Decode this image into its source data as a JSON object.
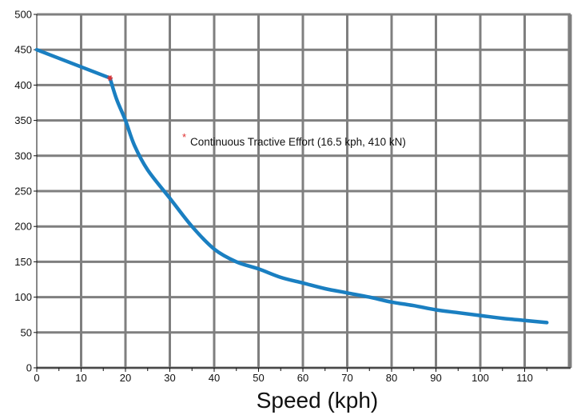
{
  "chart_data": {
    "type": "line",
    "title": "",
    "xlabel": "Speed (kph)",
    "ylabel": "",
    "xlim": [
      0,
      120
    ],
    "ylim": [
      0,
      500
    ],
    "grid": true,
    "x_ticks": [
      "0",
      "10",
      "20",
      "30",
      "40",
      "50",
      "60",
      "70",
      "80",
      "90",
      "100",
      "110"
    ],
    "y_ticks": [
      "0",
      "50",
      "100",
      "150",
      "200",
      "250",
      "300",
      "350",
      "400",
      "450",
      "500"
    ],
    "series": [
      {
        "color": "#1a7fc1",
        "points": [
          [
            0,
            450
          ],
          [
            16.5,
            410
          ],
          [
            18,
            380
          ],
          [
            20,
            350
          ],
          [
            22,
            315
          ],
          [
            25,
            280
          ],
          [
            30,
            240
          ],
          [
            35,
            200
          ],
          [
            40,
            168
          ],
          [
            45,
            150
          ],
          [
            50,
            140
          ],
          [
            55,
            128
          ],
          [
            60,
            120
          ],
          [
            65,
            112
          ],
          [
            70,
            106
          ],
          [
            75,
            100
          ],
          [
            80,
            93
          ],
          [
            85,
            88
          ],
          [
            90,
            82
          ],
          [
            95,
            78
          ],
          [
            100,
            74
          ],
          [
            105,
            70
          ],
          [
            110,
            67
          ],
          [
            115,
            64
          ]
        ]
      }
    ],
    "markers": [
      {
        "x": 16.5,
        "y": 410,
        "color": "#e03030"
      }
    ],
    "annotation": {
      "text": "Continuous Tractive Effort (16.5 kph, 410 kN)",
      "marker_color": "#e03030"
    },
    "grid_color": "#7f7f7f"
  }
}
